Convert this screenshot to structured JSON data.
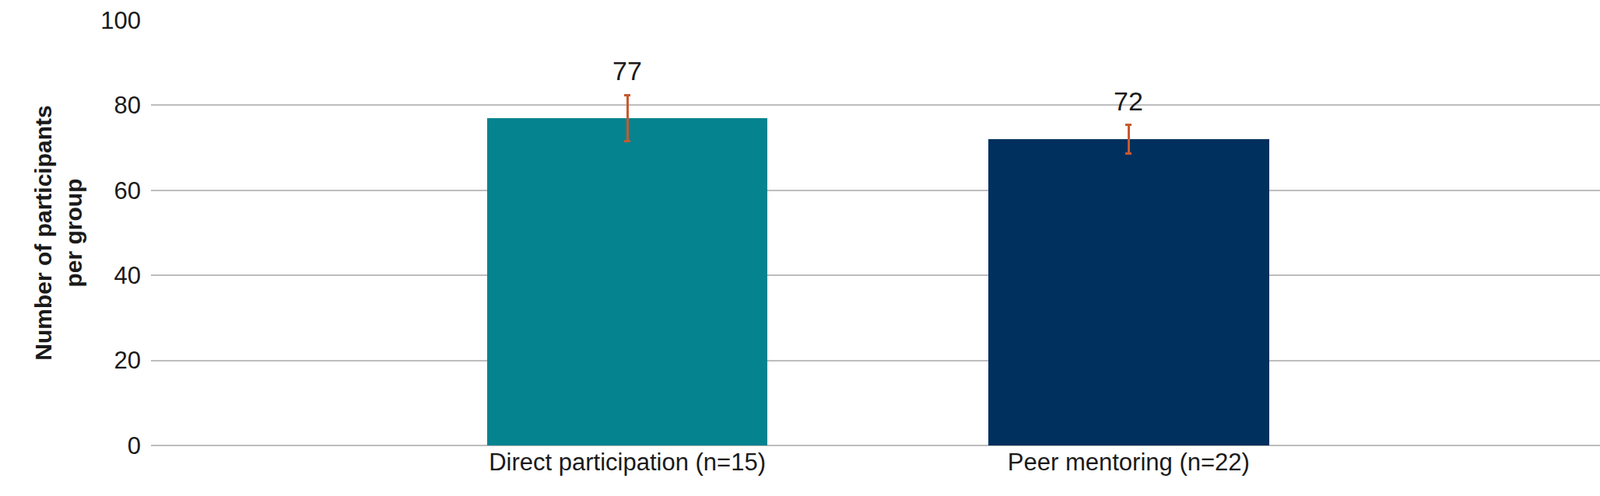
{
  "chart_data": {
    "type": "bar",
    "y_label": "Number of participants per group",
    "categories": [
      "Direct participation (n=15)",
      "Peer mentoring (n=22)"
    ],
    "values": [
      77,
      72
    ],
    "errors": [
      5.4,
      3.4
    ],
    "colors": [
      "#05838f",
      "#00305e"
    ],
    "ylim": [
      0,
      100
    ],
    "yticks": [
      0,
      20,
      40,
      60,
      80,
      100
    ],
    "grid": true,
    "data_labels": true
  }
}
